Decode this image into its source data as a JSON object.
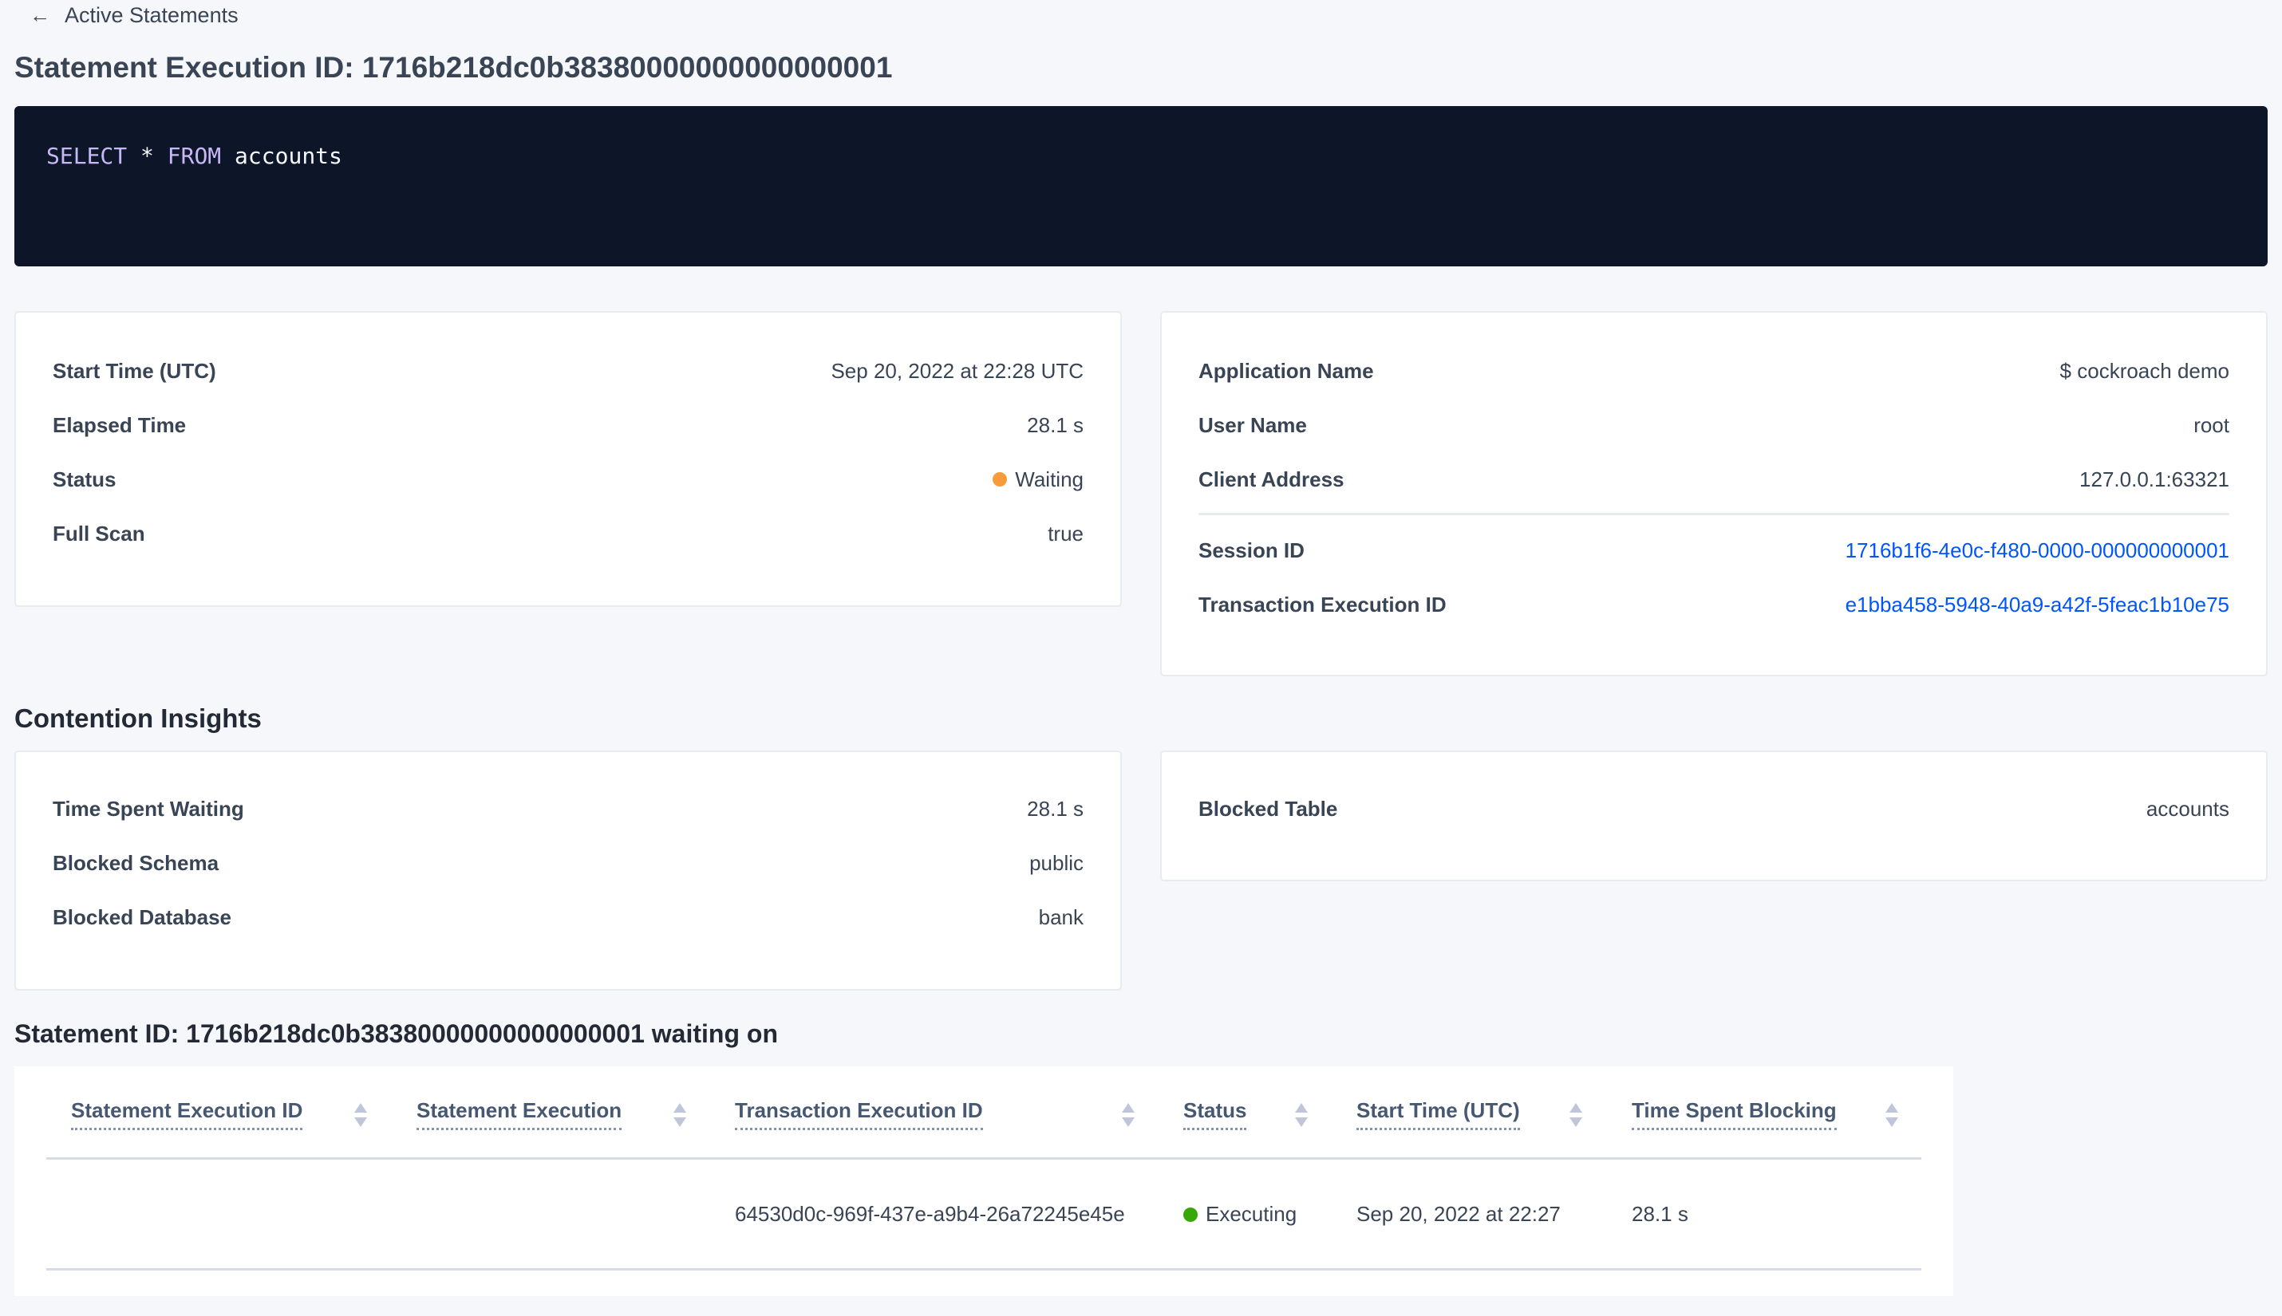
{
  "nav": {
    "back_label": "Active Statements",
    "back_icon": "arrow-left-icon"
  },
  "page_title": "Statement Execution ID: 1716b218dc0b38380000000000000001",
  "sql": {
    "keyword1": "SELECT",
    "star": "*",
    "keyword2": "FROM",
    "table": "accounts"
  },
  "overview": [
    {
      "label": "Start Time (UTC)",
      "value": "Sep 20, 2022 at 22:28 UTC"
    },
    {
      "label": "Elapsed Time",
      "value": "28.1 s"
    },
    {
      "label": "Status",
      "value": "Waiting",
      "status_color": "#f79c3b"
    },
    {
      "label": "Full Scan",
      "value": "true"
    }
  ],
  "session": [
    {
      "label": "Application Name",
      "value": "$ cockroach demo"
    },
    {
      "label": "User Name",
      "value": "root"
    },
    {
      "label": "Client Address",
      "value": "127.0.0.1:63321"
    },
    {
      "label": "Session ID",
      "value": "1716b1f6-4e0c-f480-0000-000000000001"
    },
    {
      "label": "Transaction Execution ID",
      "value": "e1bba458-5948-40a9-a42f-5feac1b10e75"
    }
  ],
  "contention": {
    "heading": "Contention Insights",
    "left": [
      {
        "label": "Time Spent Waiting",
        "value": "28.1 s"
      },
      {
        "label": "Blocked Schema",
        "value": "public"
      },
      {
        "label": "Blocked Database",
        "value": "bank"
      }
    ],
    "right": [
      {
        "label": "Blocked Table",
        "value": "accounts"
      }
    ]
  },
  "waiting": {
    "heading": "Statement ID: 1716b218dc0b38380000000000000001 waiting on",
    "columns": [
      "Statement Execution ID",
      "Statement Execution",
      "Transaction Execution ID",
      "Status",
      "Start Time (UTC)",
      "Time Spent Blocking"
    ],
    "rows": [
      {
        "statement_execution_id": "",
        "statement_execution": "",
        "transaction_execution_id": "64530d0c-969f-437e-a9b4-26a72245e45e",
        "status": "Executing",
        "status_color": "#37a806",
        "start_time": "Sep 20, 2022 at 22:27",
        "time_spent_blocking": "28.1 s"
      }
    ]
  },
  "colors": {
    "link": "#0055ff",
    "code_bg": "#0d1529",
    "keyword": "#c7b8f5"
  }
}
